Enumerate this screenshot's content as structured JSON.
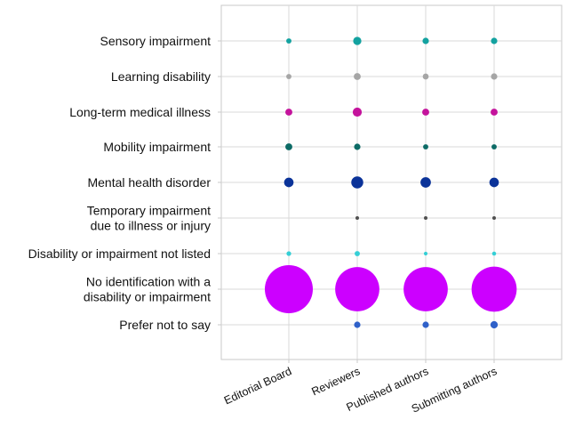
{
  "chart_data": {
    "type": "scatter",
    "title": "",
    "xlabel": "",
    "ylabel": "",
    "grid": true,
    "legend": "none",
    "categories_x": [
      "Editorial Board",
      "Reviewers",
      "Published authors",
      "Submitting authors"
    ],
    "categories_y": [
      [
        "Sensory impairment"
      ],
      [
        "Learning disability"
      ],
      [
        "Long-term medical illness"
      ],
      [
        "Mobility impairment"
      ],
      [
        "Mental health disorder"
      ],
      [
        "Temporary impairment",
        "due to illness or injury"
      ],
      [
        "Disability or impairment not listed"
      ],
      [
        "No identification with a",
        "disability or impairment"
      ],
      [
        "Prefer not to say"
      ]
    ],
    "row_colors": [
      "#13a2a0",
      "#a6a6a6",
      "#c4139c",
      "#0d6b66",
      "#0b3399",
      "#505050",
      "#35cfd6",
      "#cc00ff",
      "#2f61c9"
    ],
    "bubble_size_scale": "relative share of respondents",
    "values": [
      [
        1.0,
        2.5,
        1.5,
        1.5
      ],
      [
        1.0,
        1.8,
        1.3,
        1.5
      ],
      [
        1.8,
        3.0,
        1.8,
        1.8
      ],
      [
        1.8,
        1.5,
        1.0,
        1.0
      ],
      [
        3.3,
        5.3,
        4.0,
        3.3
      ],
      [
        null,
        0.4,
        0.2,
        0.15
      ],
      [
        0.8,
        1.0,
        0.5,
        0.6
      ],
      [
        85,
        72,
        72,
        75
      ],
      [
        null,
        1.5,
        1.5,
        2.0
      ]
    ]
  }
}
